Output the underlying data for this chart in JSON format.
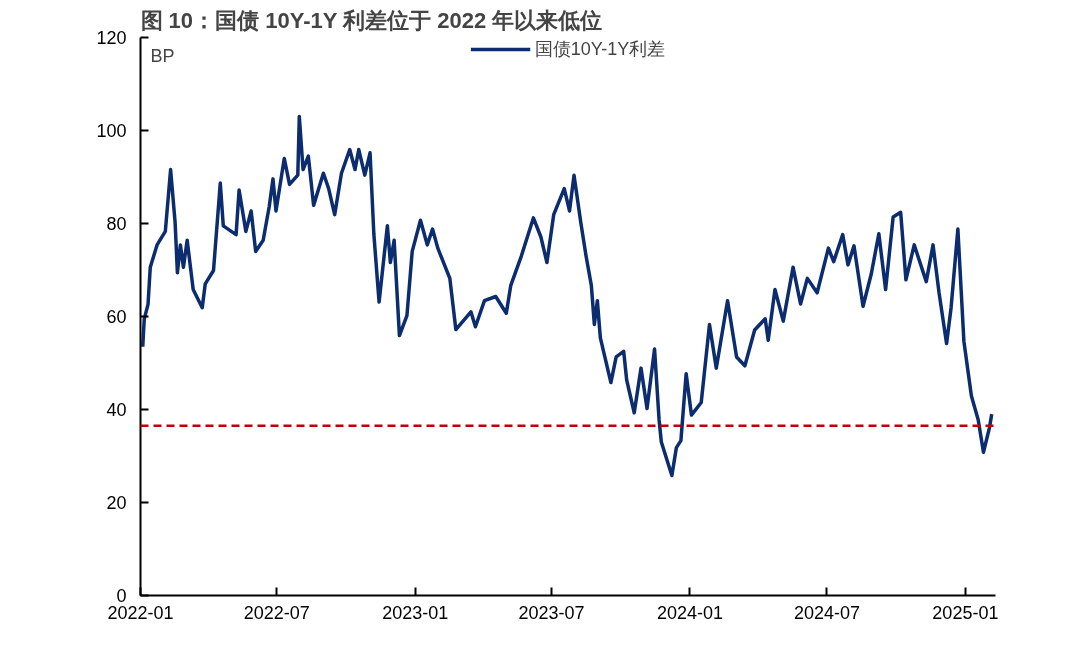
{
  "chart_data": {
    "type": "line",
    "title": "图 10：国债 10Y-1Y 利差位于 2022 年以来低位",
    "ylabel": "BP",
    "x": [
      "2022-01-04",
      "2022-01-06",
      "2022-01-11",
      "2022-01-14",
      "2022-01-23",
      "2022-02-03",
      "2022-02-10",
      "2022-02-16",
      "2022-02-19",
      "2022-02-23",
      "2022-02-27",
      "2022-03-04",
      "2022-03-12",
      "2022-03-24",
      "2022-03-28",
      "2022-04-08",
      "2022-04-17",
      "2022-04-21",
      "2022-05-08",
      "2022-05-12",
      "2022-05-21",
      "2022-05-28",
      "2022-06-03",
      "2022-06-13",
      "2022-06-21",
      "2022-06-26",
      "2022-06-30",
      "2022-07-11",
      "2022-07-18",
      "2022-07-29",
      "2022-07-31",
      "2022-08-05",
      "2022-08-12",
      "2022-08-19",
      "2022-09-01",
      "2022-09-08",
      "2022-09-16",
      "2022-09-25",
      "2022-10-06",
      "2022-10-13",
      "2022-10-18",
      "2022-10-26",
      "2022-11-02",
      "2022-11-07",
      "2022-11-14",
      "2022-11-25",
      "2022-11-29",
      "2022-12-04",
      "2022-12-11",
      "2022-12-21",
      "2022-12-28",
      "2023-01-08",
      "2023-01-17",
      "2023-01-24",
      "2023-01-31",
      "2023-02-16",
      "2023-02-24",
      "2023-03-16",
      "2023-03-22",
      "2023-04-03",
      "2023-04-18",
      "2023-05-02",
      "2023-05-08",
      "2023-05-22",
      "2023-06-07",
      "2023-06-17",
      "2023-06-25",
      "2023-07-04",
      "2023-07-18",
      "2023-07-25",
      "2023-07-31",
      "2023-08-09",
      "2023-08-16",
      "2023-08-23",
      "2023-08-27",
      "2023-08-31",
      "2023-09-04",
      "2023-09-18",
      "2023-09-25",
      "2023-10-05",
      "2023-10-09",
      "2023-10-19",
      "2023-10-28",
      "2023-11-05",
      "2023-11-15",
      "2023-11-21",
      "2023-11-24",
      "2023-12-08",
      "2023-12-14",
      "2023-12-20",
      "2023-12-27",
      "2024-01-03",
      "2024-01-16",
      "2024-01-27",
      "2024-02-05",
      "2024-02-20",
      "2024-03-03",
      "2024-03-14",
      "2024-03-27",
      "2024-04-10",
      "2024-04-14",
      "2024-04-23",
      "2024-05-04",
      "2024-05-17",
      "2024-05-27",
      "2024-06-05",
      "2024-06-18",
      "2024-07-03",
      "2024-07-10",
      "2024-07-22",
      "2024-07-29",
      "2024-08-06",
      "2024-08-18",
      "2024-08-29",
      "2024-09-08",
      "2024-09-17",
      "2024-09-27",
      "2024-10-07",
      "2024-10-14",
      "2024-10-25",
      "2024-11-10",
      "2024-11-19",
      "2024-11-27",
      "2024-12-07",
      "2024-12-13",
      "2024-12-22",
      "2024-12-30",
      "2025-01-09",
      "2025-01-18",
      "2025-01-25",
      "2025-02-02",
      "2025-02-05"
    ],
    "series": [
      {
        "name": "国债10Y-1Y利差",
        "color": "#0b2c6e",
        "values": [
          53.5,
          59.5,
          62.6,
          70.6,
          75.4,
          78.3,
          91.6,
          80.2,
          69.4,
          75.4,
          70.6,
          76.4,
          65.8,
          61.9,
          67,
          69.9,
          88.7,
          79.5,
          77.6,
          87.2,
          78.3,
          82.7,
          74,
          76.4,
          83.6,
          89.6,
          82.7,
          94,
          88.4,
          90.4,
          103,
          91.6,
          94.5,
          83.9,
          90.8,
          87.5,
          81.9,
          90.8,
          95.9,
          91.6,
          95.9,
          90.4,
          95.2,
          77.8,
          63.1,
          79.5,
          71.6,
          76.4,
          55.9,
          60.2,
          74,
          80.7,
          75.4,
          78.8,
          74.7,
          68.2,
          57.2,
          61,
          57.8,
          63.4,
          64.3,
          60.7,
          66.7,
          73,
          81.2,
          77.1,
          71.6,
          81.9,
          87.5,
          82.7,
          90.4,
          80.2,
          73,
          66.7,
          58.3,
          63.4,
          55.4,
          45.8,
          51.3,
          52.5,
          46.3,
          39.3,
          48.9,
          40.2,
          53,
          37.8,
          33,
          25.8,
          31.8,
          33.3,
          47.7,
          38.8,
          41.5,
          58.3,
          48.9,
          63.4,
          51.3,
          49.4,
          57.1,
          59.5,
          54.9,
          65.8,
          59,
          70.6,
          62.7,
          68.2,
          65.1,
          74.7,
          71.8,
          77.6,
          71.1,
          75.2,
          62.2,
          69.2,
          77.8,
          65.8,
          81.4,
          82.4,
          67.9,
          75.4,
          67.5,
          75.4,
          65.1,
          54.2,
          61.9,
          78.8,
          54.7,
          42.9,
          37.8,
          30.8,
          36.1,
          39
        ]
      }
    ],
    "xlim": [
      "2022-01-01",
      "2025-02-10"
    ],
    "xticks": [
      "2022-01",
      "2022-07",
      "2023-01",
      "2023-07",
      "2024-01",
      "2024-07",
      "2025-01"
    ],
    "ylim": [
      0,
      120
    ],
    "yticks": [
      0,
      20,
      40,
      60,
      80,
      100,
      120
    ],
    "ref_lines": [
      {
        "axis": "y",
        "value": 36.5,
        "color": "#c00000",
        "line_style": "dashed"
      }
    ],
    "legend": "top",
    "grid": false,
    "marker": "none",
    "line_style": "solid"
  }
}
